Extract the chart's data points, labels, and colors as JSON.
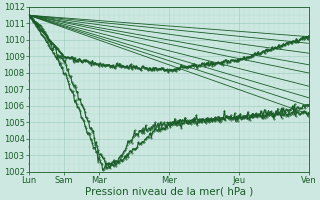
{
  "xlabel": "Pression niveau de la mer( hPa )",
  "bg_color": "#cce8e0",
  "grid_major_color": "#99ccbb",
  "grid_minor_color": "#b8ddd4",
  "line_color": "#1a5c28",
  "ylim": [
    1002,
    1012
  ],
  "xlim": [
    0,
    112
  ],
  "yticks": [
    1002,
    1003,
    1004,
    1005,
    1006,
    1007,
    1008,
    1009,
    1010,
    1011,
    1012
  ],
  "xtick_positions": [
    0,
    14,
    28,
    56,
    84,
    112
  ],
  "xtick_labels": [
    "Lun",
    "Sam",
    "Mar",
    "Mer",
    "Jeu",
    "Ven"
  ],
  "xlabel_fontsize": 7.5,
  "tick_fontsize": 6,
  "forecast_lines": [
    [
      0,
      1011.5,
      112,
      1010.2
    ],
    [
      0,
      1011.5,
      112,
      1009.8
    ],
    [
      0,
      1011.5,
      112,
      1009.2
    ],
    [
      0,
      1011.5,
      112,
      1008.5
    ],
    [
      0,
      1011.5,
      112,
      1008.0
    ],
    [
      0,
      1011.5,
      112,
      1007.2
    ],
    [
      0,
      1011.5,
      112,
      1006.5
    ],
    [
      0,
      1011.5,
      112,
      1006.0
    ],
    [
      0,
      1011.5,
      112,
      1005.5
    ]
  ],
  "observed_ctrl_x": [
    0,
    6,
    14,
    20,
    26,
    30,
    36,
    42,
    50,
    58,
    66,
    74,
    84,
    98,
    112
  ],
  "observed_ctrl_y": [
    1011.5,
    1010.2,
    1008.2,
    1005.8,
    1003.5,
    1002.2,
    1002.8,
    1004.2,
    1004.8,
    1005.0,
    1005.1,
    1005.2,
    1005.3,
    1005.6,
    1006.0
  ],
  "observed2_ctrl_x": [
    0,
    5,
    10,
    14,
    18,
    22,
    26,
    28,
    32,
    40,
    50,
    60,
    75,
    90,
    112
  ],
  "observed2_ctrl_y": [
    1011.5,
    1010.8,
    1009.5,
    1008.8,
    1007.2,
    1005.8,
    1004.2,
    1003.2,
    1002.3,
    1003.0,
    1004.5,
    1005.0,
    1005.2,
    1005.4,
    1005.6
  ],
  "top_ctrl_x": [
    0,
    14,
    28,
    56,
    84,
    98,
    108,
    112
  ],
  "top_ctrl_y": [
    1011.5,
    1009.0,
    1008.5,
    1008.2,
    1008.8,
    1009.5,
    1010.0,
    1010.2
  ]
}
